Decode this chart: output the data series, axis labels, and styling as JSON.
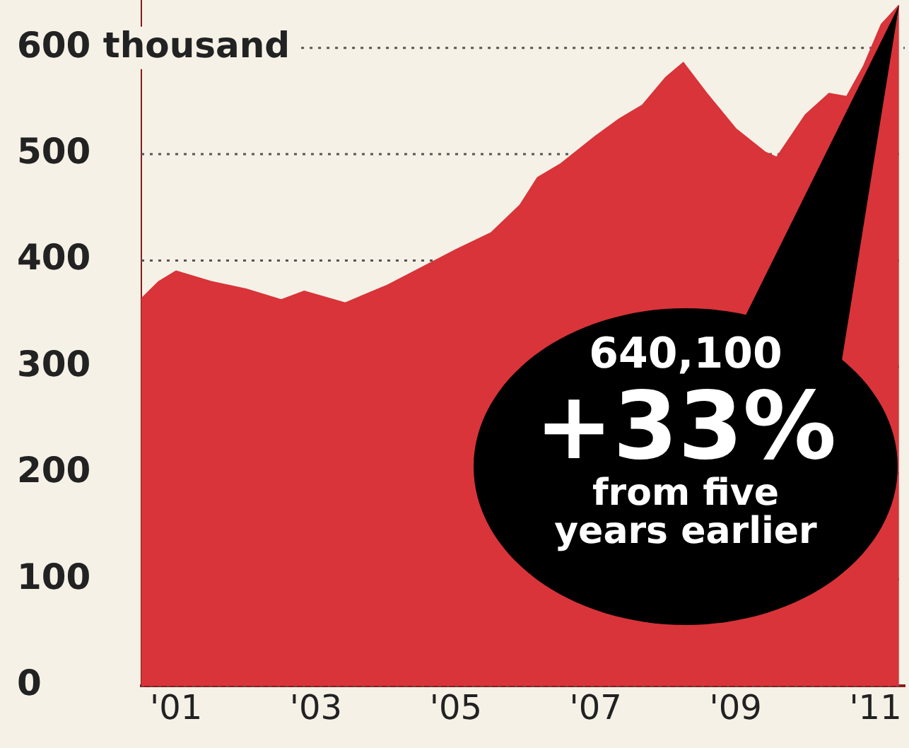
{
  "chart_data": {
    "type": "area",
    "x": [
      "2001-01",
      "2001-04",
      "2001-07",
      "2002-01",
      "2002-07",
      "2003-01",
      "2003-05",
      "2003-12",
      "2004-07",
      "2005-01",
      "2005-07",
      "2006-01",
      "2006-06",
      "2006-09",
      "2007-01",
      "2007-07",
      "2007-11",
      "2008-03",
      "2008-07",
      "2008-10",
      "2009-02",
      "2009-07",
      "2009-12",
      "2010-02",
      "2010-07",
      "2010-11",
      "2011-02",
      "2011-05",
      "2011-08",
      "2011-11"
    ],
    "series": [
      {
        "color": "#d8343a",
        "values": [
          364,
          380,
          390,
          380,
          373,
          363,
          371,
          360,
          376,
          393,
          410,
          426,
          452,
          478,
          491,
          517,
          533,
          546,
          572,
          586,
          557,
          524,
          502,
          497,
          537,
          557,
          554,
          583,
          622,
          640
        ]
      }
    ],
    "xlim": [
      "2001-01",
      "2011-12"
    ],
    "xticks": [
      {
        "value": "2001-07",
        "label": "'01"
      },
      {
        "value": "2003-07",
        "label": "'03"
      },
      {
        "value": "2005-07",
        "label": "'05"
      },
      {
        "value": "2007-07",
        "label": "'07"
      },
      {
        "value": "2009-07",
        "label": "'09"
      },
      {
        "value": "2011-07",
        "label": "'11"
      }
    ],
    "ylim": [
      0,
      645
    ],
    "yticks": [
      0,
      100,
      200,
      300,
      400,
      500,
      {
        "value": 600,
        "label": "600 thousand"
      }
    ],
    "grid": "y",
    "line_style": "dotted",
    "annotations": [
      {
        "text": "640,100\n+33%\nfrom five years earlier",
        "x": "2011-11",
        "y": 640
      }
    ]
  }
}
